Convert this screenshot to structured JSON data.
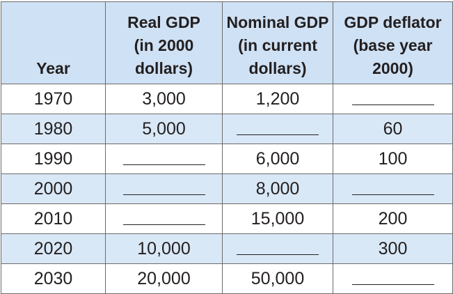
{
  "headers": [
    {
      "lines": [
        "Year"
      ]
    },
    {
      "lines": [
        "Real GDP",
        "(in 2000",
        "dollars)"
      ]
    },
    {
      "lines": [
        "Nominal GDP",
        "(in current",
        "dollars)"
      ]
    },
    {
      "lines": [
        "GDP deflator",
        "(base year",
        "2000)"
      ]
    }
  ],
  "rows": [
    {
      "year": "1970",
      "real": "3,000",
      "nominal": "1,200",
      "deflator": ""
    },
    {
      "year": "1980",
      "real": "5,000",
      "nominal": "",
      "deflator": "60"
    },
    {
      "year": "1990",
      "real": "",
      "nominal": "6,000",
      "deflator": "100"
    },
    {
      "year": "2000",
      "real": "",
      "nominal": "8,000",
      "deflator": ""
    },
    {
      "year": "2010",
      "real": "",
      "nominal": "15,000",
      "deflator": "200"
    },
    {
      "year": "2020",
      "real": "10,000",
      "nominal": "",
      "deflator": "300"
    },
    {
      "year": "2030",
      "real": "20,000",
      "nominal": "50,000",
      "deflator": ""
    }
  ],
  "colors": {
    "header_bg": "#cfe1f4",
    "shaded_row_bg": "#d9e8f7",
    "border": "#6b6b6b",
    "text": "#231f20"
  }
}
